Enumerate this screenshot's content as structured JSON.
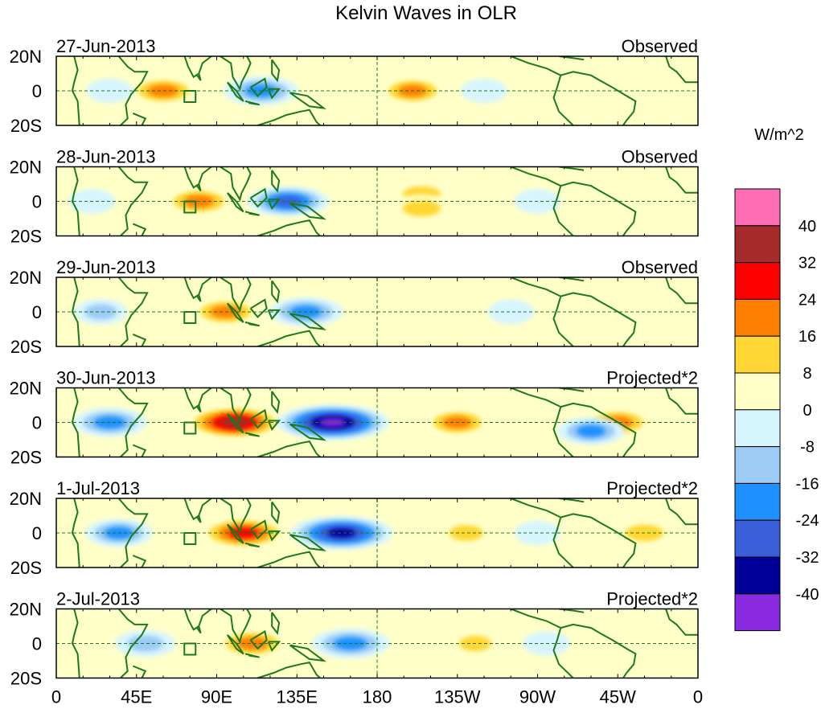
{
  "chart_data": {
    "type": "heatmap",
    "title": "Kelvin Waves in OLR",
    "colorbar": {
      "unit_label": "W/m^2",
      "tick_labels": [
        "40",
        "32",
        "24",
        "16",
        "8",
        "0",
        "-8",
        "-16",
        "-24",
        "-32",
        "-40"
      ],
      "bins_top_to_bottom": [
        {
          "min": 40,
          "max": null,
          "color": "#ff6eb4"
        },
        {
          "min": 32,
          "max": 40,
          "color": "#a52a2a"
        },
        {
          "min": 24,
          "max": 32,
          "color": "#ff0000"
        },
        {
          "min": 16,
          "max": 24,
          "color": "#ff7f00"
        },
        {
          "min": 8,
          "max": 16,
          "color": "#ffd633"
        },
        {
          "min": 0,
          "max": 8,
          "color": "#ffffc8"
        },
        {
          "min": -8,
          "max": 0,
          "color": "#d6f5ff"
        },
        {
          "min": -16,
          "max": -8,
          "color": "#9ccbf5"
        },
        {
          "min": -24,
          "max": -16,
          "color": "#1e90ff"
        },
        {
          "min": -32,
          "max": -24,
          "color": "#3a5fd9"
        },
        {
          "min": -40,
          "max": -32,
          "color": "#000099"
        },
        {
          "min": null,
          "max": -40,
          "color": "#8a2be2"
        }
      ]
    },
    "x_ticks": [
      "0",
      "45E",
      "90E",
      "135E",
      "180",
      "135W",
      "90W",
      "45W",
      "0"
    ],
    "y_ticks": [
      "20N",
      "0",
      "20S"
    ],
    "xlim_deg_east": [
      0,
      360
    ],
    "ylim_deg": [
      -20,
      20
    ],
    "panels": [
      {
        "date": "27-Jun-2013",
        "label": "Observed",
        "anomalies": [
          {
            "lon": 60,
            "lat": 0,
            "value": 20
          },
          {
            "lon": 115,
            "lat": 0,
            "value": -22
          },
          {
            "lon": 30,
            "lat": 0,
            "value": -6
          },
          {
            "lon": 200,
            "lat": 0,
            "value": 18
          },
          {
            "lon": 240,
            "lat": 0,
            "value": -6
          },
          {
            "lon": 320,
            "lat": -3,
            "value": 8
          }
        ]
      },
      {
        "date": "28-Jun-2013",
        "label": "Observed",
        "anomalies": [
          {
            "lon": 80,
            "lat": 0,
            "value": 20
          },
          {
            "lon": 130,
            "lat": 0,
            "value": -26
          },
          {
            "lon": 20,
            "lat": 0,
            "value": -6
          },
          {
            "lon": 205,
            "lat": 4,
            "value": 16
          },
          {
            "lon": 205,
            "lat": -4,
            "value": 16
          },
          {
            "lon": 270,
            "lat": 0,
            "value": -6
          }
        ]
      },
      {
        "date": "29-Jun-2013",
        "label": "Observed",
        "anomalies": [
          {
            "lon": 95,
            "lat": 0,
            "value": 20
          },
          {
            "lon": 140,
            "lat": 0,
            "value": -22
          },
          {
            "lon": 25,
            "lat": 0,
            "value": -10
          },
          {
            "lon": 215,
            "lat": 0,
            "value": 8
          },
          {
            "lon": 255,
            "lat": 0,
            "value": -6
          }
        ]
      },
      {
        "date": "30-Jun-2013",
        "label": "Projected*2",
        "anomalies": [
          {
            "lon": 100,
            "lat": 0,
            "value": 36
          },
          {
            "lon": 155,
            "lat": 0,
            "value": -44
          },
          {
            "lon": 30,
            "lat": 0,
            "value": -22
          },
          {
            "lon": 225,
            "lat": 0,
            "value": 18
          },
          {
            "lon": 315,
            "lat": 0,
            "value": 20
          },
          {
            "lon": 300,
            "lat": -5,
            "value": -18
          }
        ]
      },
      {
        "date": "1-Jul-2013",
        "label": "Projected*2",
        "anomalies": [
          {
            "lon": 105,
            "lat": 0,
            "value": 30
          },
          {
            "lon": 160,
            "lat": 0,
            "value": -38
          },
          {
            "lon": 35,
            "lat": 0,
            "value": -18
          },
          {
            "lon": 230,
            "lat": 0,
            "value": 12
          },
          {
            "lon": 330,
            "lat": 0,
            "value": 16
          },
          {
            "lon": 270,
            "lat": 0,
            "value": -6
          }
        ]
      },
      {
        "date": "2-Jul-2013",
        "label": "Projected*2",
        "anomalies": [
          {
            "lon": 110,
            "lat": 0,
            "value": 22
          },
          {
            "lon": 165,
            "lat": 0,
            "value": -24
          },
          {
            "lon": 50,
            "lat": 0,
            "value": -14
          },
          {
            "lon": 235,
            "lat": 0,
            "value": 10
          },
          {
            "lon": 325,
            "lat": 0,
            "value": 8
          },
          {
            "lon": 275,
            "lat": 0,
            "value": -6
          }
        ]
      }
    ]
  }
}
